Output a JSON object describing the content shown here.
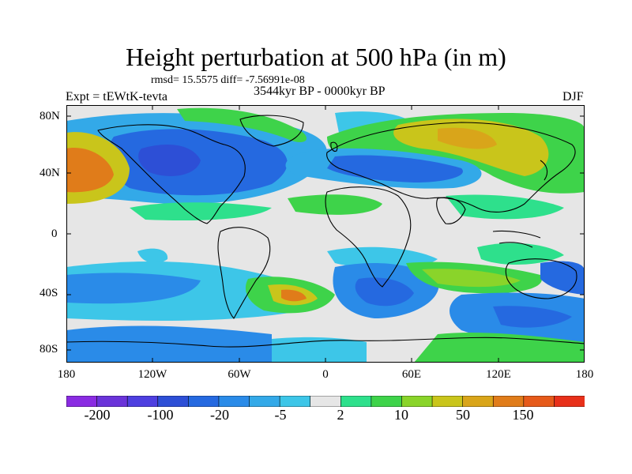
{
  "title": "Height perturbation at 500 hPa (in m)",
  "stats": "rmsd= 15.5575 diff= -7.56991e-08",
  "experiment": "Expt = tEWtK-tevta",
  "period": "3544kyr BP - 0000kyr BP",
  "season": "DJF",
  "lat_ticks": [
    "80N",
    "40N",
    "0",
    "40S",
    "80S"
  ],
  "lon_ticks": [
    "180",
    "120W",
    "60W",
    "0",
    "60E",
    "120E",
    "180"
  ],
  "colorbar": {
    "colors": [
      "#8a2be2",
      "#6a33d9",
      "#4e3fe0",
      "#2d4fd6",
      "#2569e0",
      "#2a8be8",
      "#33a9e8",
      "#3dc6e8",
      "#e6e6e6",
      "#2ee08c",
      "#3ed34a",
      "#8ad42a",
      "#c9c51b",
      "#d9a51a",
      "#e07c1a",
      "#e65a1a",
      "#e8301a"
    ],
    "labels": [
      "-200",
      "-100",
      "-20",
      "-5",
      "2",
      "10",
      "50",
      "150"
    ]
  },
  "field_colors": {
    "neg_strong": "#2d4fd6",
    "neg_mid": "#2569e0",
    "neg_light": "#33a9e8",
    "neg_weak": "#3dc6e8",
    "neutral": "#e6e6e6",
    "pos_weak": "#2ee08c",
    "pos_light": "#3ed34a",
    "pos_mid": "#c9c51b",
    "pos_strong": "#e07c1a"
  }
}
